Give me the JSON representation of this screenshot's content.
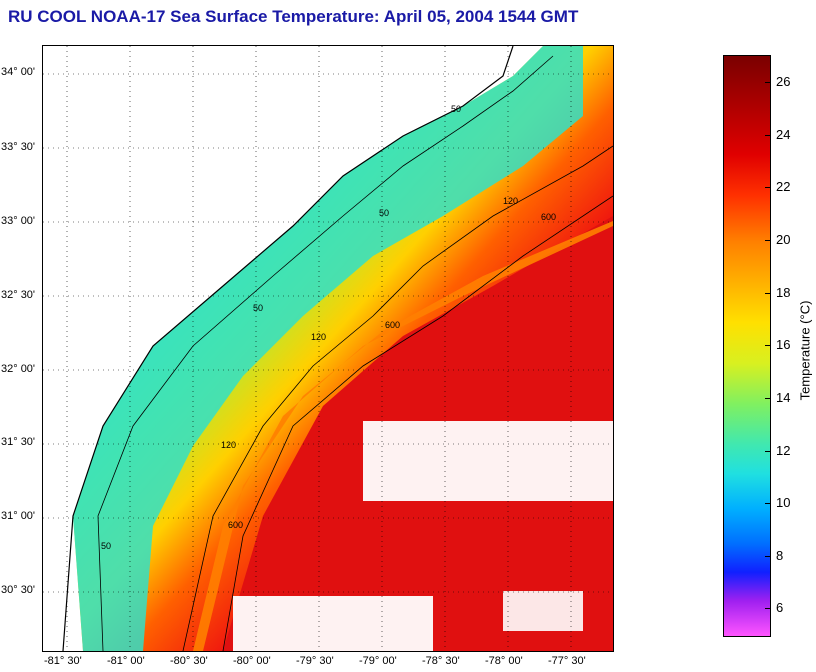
{
  "title": "RU COOL  NOAA-17  Sea Surface Temperature:  April 05, 2004 1544 GMT",
  "lat_labels": [
    "34° 00'",
    "33° 30'",
    "33° 00'",
    "32° 30'",
    "32° 00'",
    "31° 30'",
    "31° 00'",
    "30° 30'"
  ],
  "lon_labels": [
    "-81° 30'",
    "-81° 00'",
    "-80° 30'",
    "-80° 00'",
    "-79° 30'",
    "-79° 00'",
    "-78° 30'",
    "-78° 00'",
    "-77° 30'"
  ],
  "colorbar": {
    "label": "Temperature (°C)",
    "ticks": [
      "26",
      "24",
      "22",
      "20",
      "18",
      "16",
      "14",
      "12",
      "10",
      "8",
      "6"
    ],
    "range": [
      5,
      27
    ]
  },
  "contours": {
    "isobath_50": "50",
    "isobath_120": "120",
    "isobath_600": "600"
  },
  "colors": {
    "title": "#1a1aa6",
    "land": "#ffffff",
    "clouds": "#ffffff",
    "coastline": "#000000"
  }
}
